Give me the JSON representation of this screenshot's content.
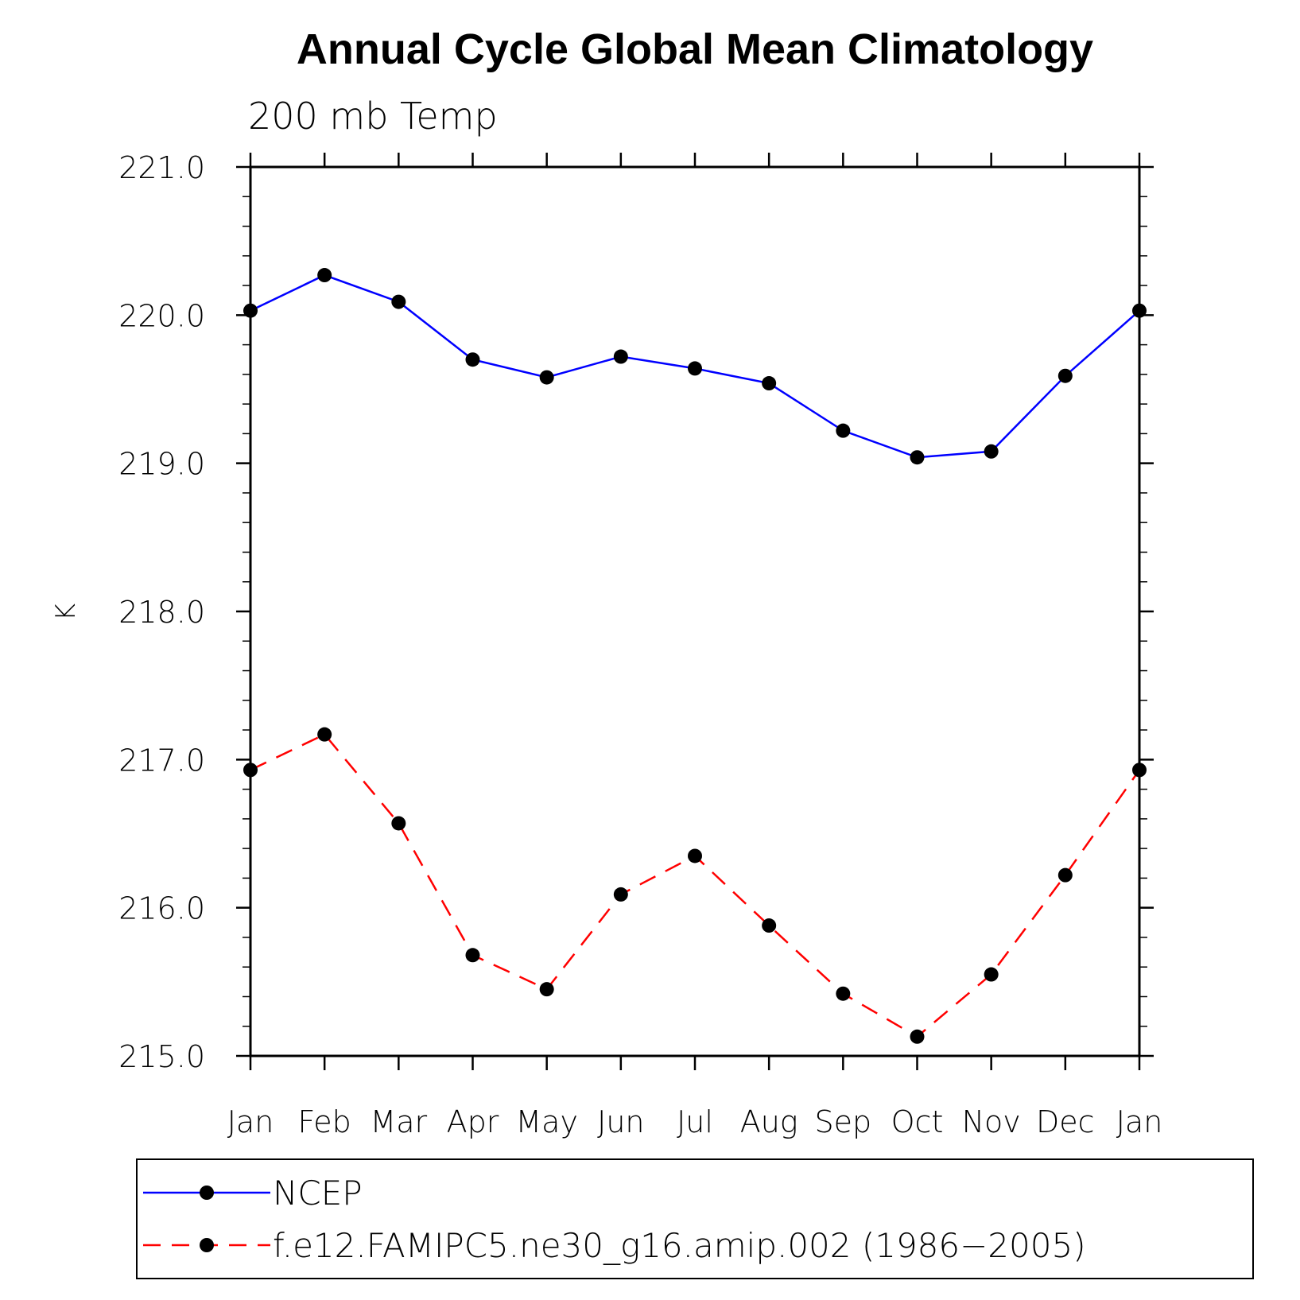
{
  "title": "Annual Cycle Global Mean Climatology",
  "subtitle": "200 mb Temp",
  "colors": {
    "ncep": "#0000ff",
    "model": "#ff0000",
    "marker": "#000000",
    "axis": "#000000"
  },
  "chart_data": {
    "type": "line",
    "title": "Annual Cycle Global Mean Climatology",
    "subtitle": "200 mb Temp",
    "xlabel": "",
    "ylabel": "K",
    "categories": [
      "Jan",
      "Feb",
      "Mar",
      "Apr",
      "May",
      "Jun",
      "Jul",
      "Aug",
      "Sep",
      "Oct",
      "Nov",
      "Dec",
      "Jan"
    ],
    "ylim": [
      215.0,
      221.0
    ],
    "yticks": [
      "215.0",
      "216.0",
      "217.0",
      "218.0",
      "219.0",
      "220.0",
      "221.0"
    ],
    "grid": false,
    "legend_position": "bottom",
    "series": [
      {
        "name": "NCEP",
        "style": "solid",
        "color": "#0000ff",
        "values": [
          220.03,
          220.27,
          220.09,
          219.7,
          219.58,
          219.72,
          219.64,
          219.54,
          219.22,
          219.04,
          219.08,
          219.59,
          220.03
        ]
      },
      {
        "name": "f.e12.FAMIPC5.ne30_g16.amip.002 (1986−2005)",
        "style": "dashed",
        "color": "#ff0000",
        "values": [
          216.93,
          217.17,
          216.57,
          215.68,
          215.45,
          216.09,
          216.35,
          215.88,
          215.42,
          215.13,
          215.55,
          216.22,
          216.93
        ]
      }
    ]
  }
}
